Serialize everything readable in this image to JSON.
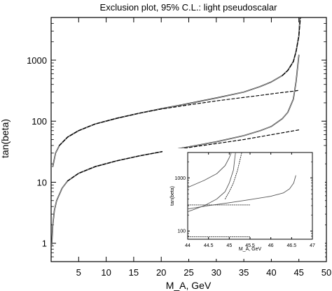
{
  "chart_data": [
    {
      "type": "line",
      "title": "Exclusion plot, 95% C.L.: light pseudoscalar",
      "xlabel": "M_A, GeV",
      "ylabel": "tan(beta)",
      "xlim": [
        0,
        50
      ],
      "ylim": [
        0.5,
        5000
      ],
      "yscale": "log",
      "x_ticks": [
        5,
        10,
        15,
        20,
        25,
        30,
        35,
        40,
        45,
        50
      ],
      "y_ticks": [
        1,
        10,
        100,
        1000
      ],
      "y_tick_labels": [
        "1",
        "10",
        "100",
        "1000"
      ],
      "series": [
        {
          "style": "solid-black",
          "x": [
            0.3,
            0.8,
            1.5,
            3,
            5,
            8,
            12,
            16,
            20,
            25,
            30,
            35,
            38,
            40,
            42,
            43,
            44,
            44.5,
            45,
            45.2
          ],
          "y": [
            18,
            30,
            40,
            55,
            70,
            90,
            112,
            135,
            160,
            195,
            240,
            300,
            370,
            440,
            560,
            680,
            950,
            1400,
            2500,
            5000
          ]
        },
        {
          "style": "solid-grey",
          "x": [
            0.3,
            0.8,
            1.5,
            3,
            5,
            8,
            12,
            16,
            20,
            25,
            30,
            35,
            38,
            40,
            42,
            43,
            44,
            44.5,
            45,
            45.2
          ],
          "y": [
            18,
            30,
            40,
            55,
            70,
            90,
            112,
            135,
            160,
            195,
            240,
            300,
            370,
            440,
            560,
            680,
            950,
            1400,
            2500,
            5000
          ]
        },
        {
          "style": "dashed",
          "x": [
            1.5,
            3,
            5,
            8,
            12,
            16,
            20,
            25,
            30,
            35,
            38,
            40,
            42,
            44,
            45
          ],
          "y": [
            40,
            55,
            70,
            90,
            112,
            135,
            158,
            185,
            215,
            245,
            265,
            280,
            295,
            310,
            320
          ]
        },
        {
          "style": "dashed-steep",
          "x": [
            42,
            43,
            44,
            44.5,
            45,
            45.3
          ],
          "y": [
            560,
            680,
            950,
            1400,
            2500,
            5000
          ]
        },
        {
          "style": "solid-black",
          "x": [
            0.1,
            0.3,
            0.6,
            1,
            2,
            3,
            5,
            8,
            12,
            16,
            20,
            25,
            30,
            35,
            38,
            40,
            42,
            43,
            44,
            44.5,
            45
          ],
          "y": [
            0.9,
            2,
            3.5,
            5,
            8,
            10.5,
            14,
            18,
            22.5,
            27,
            31.5,
            38,
            46,
            58,
            70,
            82,
            110,
            140,
            230,
            450,
            1200
          ]
        },
        {
          "style": "solid-grey",
          "x": [
            0.1,
            0.3,
            0.6,
            1,
            2,
            3,
            5,
            8,
            12,
            16,
            20,
            25,
            30,
            35,
            38,
            40,
            42,
            43,
            44,
            44.5,
            45
          ],
          "y": [
            0.9,
            2,
            3.5,
            5,
            8,
            10.5,
            14,
            18,
            22.5,
            27,
            31.5,
            38,
            46,
            58,
            70,
            82,
            110,
            140,
            230,
            450,
            1200
          ]
        },
        {
          "style": "dashed",
          "x": [
            3,
            5,
            8,
            12,
            16,
            20,
            25,
            30,
            35,
            40,
            45
          ],
          "y": [
            10.5,
            14,
            18,
            22.5,
            27,
            31.5,
            37,
            43,
            50,
            60,
            72
          ]
        }
      ]
    },
    {
      "type": "line",
      "inset": true,
      "xlabel": "M_A, GeV",
      "ylabel": "tan(beta)",
      "xlim": [
        44,
        47
      ],
      "ylim": [
        70,
        3000
      ],
      "yscale": "log",
      "x_ticks": [
        44,
        44.5,
        45,
        45.5,
        46,
        46.5,
        47
      ],
      "y_ticks": [
        100,
        1000
      ],
      "y_tick_labels": [
        "100",
        "1000"
      ],
      "series": [
        {
          "style": "solid",
          "x": [
            44,
            44.4,
            44.7,
            44.9,
            45.0,
            45.05
          ],
          "y": [
            660,
            900,
            1200,
            1700,
            2400,
            3000
          ]
        },
        {
          "style": "solid",
          "x": [
            44,
            44.4,
            44.7,
            44.9,
            45.0,
            45.1,
            45.15
          ],
          "y": [
            230,
            300,
            400,
            550,
            800,
            1400,
            3000
          ]
        },
        {
          "style": "solid",
          "x": [
            44,
            44.5,
            45,
            45.5,
            46,
            46.3,
            46.45,
            46.55,
            46.6
          ],
          "y": [
            260,
            300,
            340,
            390,
            450,
            520,
            620,
            800,
            1100
          ]
        },
        {
          "style": "dotted",
          "x": [
            44,
            45.5
          ],
          "y": [
            310,
            310
          ]
        },
        {
          "style": "dotted",
          "x": [
            44,
            45.5
          ],
          "y": [
            78,
            78
          ]
        },
        {
          "style": "dotted",
          "x": [
            44.9,
            45.0,
            45.1,
            45.2,
            45.3
          ],
          "y": [
            400,
            550,
            800,
            1400,
            3000
          ]
        }
      ]
    }
  ]
}
